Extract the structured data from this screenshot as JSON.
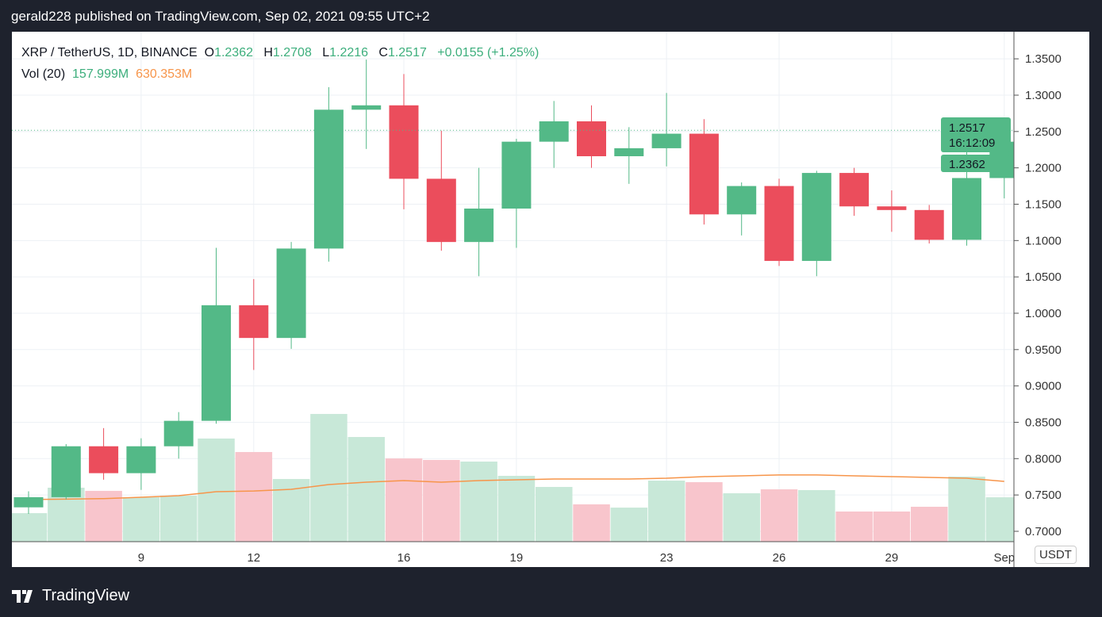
{
  "header": {
    "published": "gerald228 published on TradingView.com, Sep 02, 2021 09:55 UTC+2"
  },
  "legend": {
    "symbol": "XRP / TetherUS, 1D, BINANCE",
    "o_label": "O",
    "o": "1.2362",
    "h_label": "H",
    "h": "1.2708",
    "l_label": "L",
    "l": "1.2216",
    "c_label": "C",
    "c": "1.2517",
    "change": "+0.0155 (+1.25%)",
    "vol_label": "Vol (20)",
    "vol": "157.999M",
    "vol_ma": "630.353M"
  },
  "currency": "USDT",
  "price_tags": {
    "last": "1.2517",
    "countdown": "16:12:09",
    "open": "1.2362"
  },
  "footer": {
    "brand": "TradingView"
  },
  "colors": {
    "up": "#53b987",
    "down": "#eb4d5c",
    "up_vol": "#c8e8d8",
    "down_vol": "#f8c5cc",
    "ma": "#f7954a"
  },
  "chart_data": {
    "type": "candlestick",
    "title": "XRP / TetherUS, 1D, BINANCE",
    "ylim": [
      0.68,
      1.36
    ],
    "y_ticks": [
      "1.3500",
      "1.3000",
      "1.2500",
      "1.2000",
      "1.1500",
      "1.1000",
      "1.0500",
      "1.0000",
      "0.9500",
      "0.9000",
      "0.8500",
      "0.8000",
      "0.7500",
      "0.7000"
    ],
    "x_ticks": [
      {
        "day": 3,
        "label": "9"
      },
      {
        "day": 6,
        "label": "12"
      },
      {
        "day": 10,
        "label": "16"
      },
      {
        "day": 13,
        "label": "19"
      },
      {
        "day": 17,
        "label": "23"
      },
      {
        "day": 20,
        "label": "26"
      },
      {
        "day": 23,
        "label": "29"
      },
      {
        "day": 26,
        "label": "Sep"
      }
    ],
    "candles": [
      [
        0.733,
        0.755,
        0.724,
        0.747
      ],
      [
        0.747,
        0.82,
        0.744,
        0.817
      ],
      [
        0.817,
        0.842,
        0.771,
        0.78
      ],
      [
        0.78,
        0.828,
        0.757,
        0.817
      ],
      [
        0.817,
        0.864,
        0.8,
        0.852
      ],
      [
        0.852,
        1.09,
        0.848,
        1.011
      ],
      [
        1.011,
        1.047,
        0.922,
        0.966
      ],
      [
        0.966,
        1.098,
        0.951,
        1.089
      ],
      [
        1.089,
        1.311,
        1.071,
        1.28
      ],
      [
        1.28,
        1.349,
        1.226,
        1.286
      ],
      [
        1.286,
        1.329,
        1.143,
        1.185
      ],
      [
        1.185,
        1.251,
        1.086,
        1.098
      ],
      [
        1.098,
        1.2,
        1.051,
        1.144
      ],
      [
        1.144,
        1.24,
        1.09,
        1.236
      ],
      [
        1.236,
        1.292,
        1.2,
        1.264
      ],
      [
        1.264,
        1.286,
        1.2,
        1.216
      ],
      [
        1.216,
        1.256,
        1.178,
        1.227
      ],
      [
        1.227,
        1.303,
        1.202,
        1.247
      ],
      [
        1.247,
        1.267,
        1.122,
        1.136
      ],
      [
        1.136,
        1.18,
        1.107,
        1.175
      ],
      [
        1.175,
        1.185,
        1.065,
        1.072
      ],
      [
        1.072,
        1.196,
        1.051,
        1.193
      ],
      [
        1.193,
        1.2,
        1.134,
        1.147
      ],
      [
        1.147,
        1.169,
        1.112,
        1.142
      ],
      [
        1.142,
        1.149,
        1.096,
        1.101
      ],
      [
        1.101,
        1.245,
        1.093,
        1.186
      ],
      [
        1.186,
        1.245,
        1.158,
        1.236
      ]
    ],
    "volume_M": [
      298,
      564,
      531,
      464,
      481,
      1078,
      937,
      655,
      1335,
      1094,
      870,
      854,
      837,
      688,
      572,
      390,
      356,
      638,
      622,
      506,
      547,
      539,
      315,
      315,
      365,
      680,
      464
    ],
    "volume_ma_M": [
      440,
      445,
      450,
      464,
      481,
      522,
      530,
      547,
      597,
      622,
      638,
      622,
      638,
      647,
      655,
      655,
      655,
      663,
      680,
      688,
      697,
      697,
      688,
      680,
      672,
      663,
      630
    ]
  }
}
